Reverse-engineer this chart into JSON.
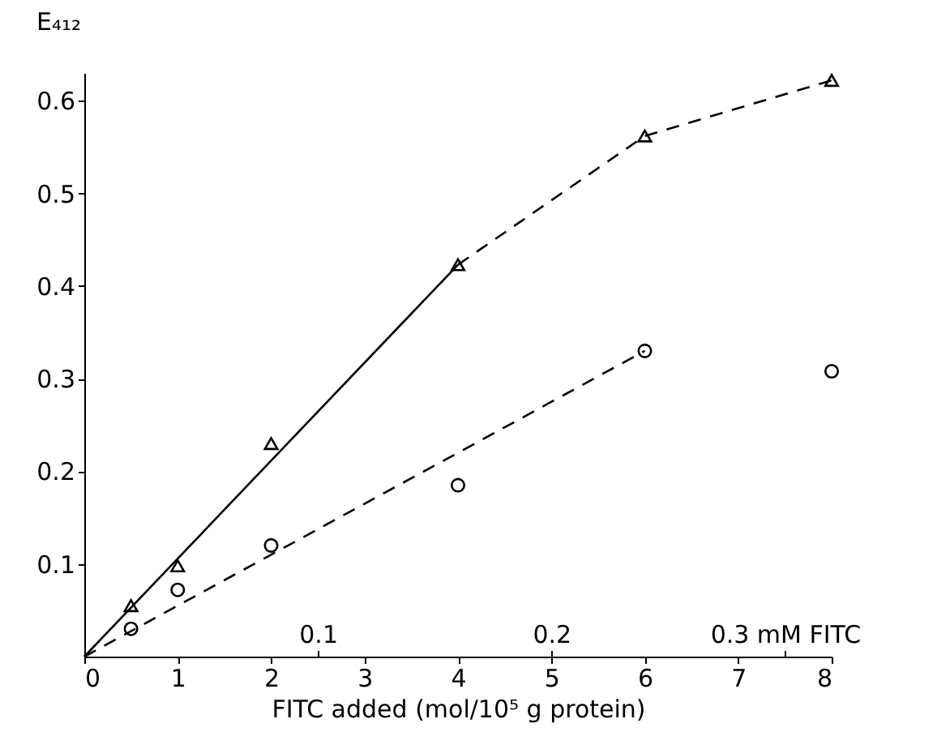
{
  "chart_data": {
    "type": "scatter",
    "xlabel": "FITC added (mol/10⁵ g protein)",
    "ylabel": "E₄₁₂",
    "xlim": [
      0,
      8
    ],
    "xticks": [
      0,
      1,
      2,
      3,
      4,
      5,
      6,
      7,
      8
    ],
    "ylim": [
      0,
      0.63
    ],
    "yticks": [
      0.1,
      0.2,
      0.3,
      0.4,
      0.5,
      0.6
    ],
    "x2lim": [
      0,
      0.32
    ],
    "x2ticks": [
      0.1,
      0.2,
      {
        "value": 0.3,
        "label": "0.3 mM FITC"
      }
    ],
    "grid": false,
    "series": [
      {
        "color": "#000000",
        "marker": "triangle",
        "x": [
          0.5,
          1,
          2,
          4,
          6,
          8
        ],
        "values": [
          0.055,
          0.098,
          0.23,
          0.423,
          0.562,
          0.622
        ]
      },
      {
        "color": "#000000",
        "marker": "circle",
        "x": [
          0.5,
          1,
          2,
          4,
          6,
          8
        ],
        "values": [
          0.03,
          0.072,
          0.12,
          0.185,
          0.33,
          0.308
        ]
      },
      {
        "type": "line",
        "color": "#000000",
        "marker": "none",
        "line_style": "solid",
        "x": [
          0,
          4
        ],
        "values": [
          0,
          0.423
        ]
      },
      {
        "type": "line",
        "color": "#000000",
        "marker": "none",
        "line_style": "dashed",
        "x": [
          4,
          6,
          8
        ],
        "values": [
          0.423,
          0.562,
          0.622
        ]
      },
      {
        "type": "line",
        "color": "#000000",
        "marker": "none",
        "line_style": "dashed",
        "x": [
          0,
          6
        ],
        "values": [
          0,
          0.33
        ]
      }
    ]
  }
}
